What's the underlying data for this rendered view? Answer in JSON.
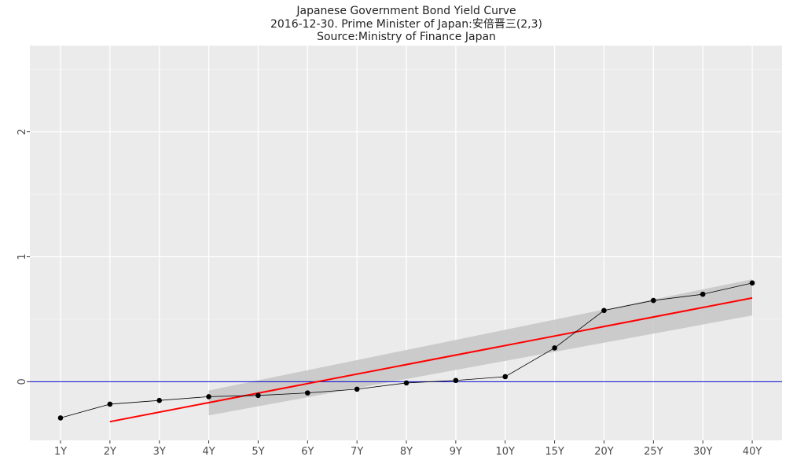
{
  "chart_data": {
    "type": "line",
    "title_lines": [
      "Japanese Government Bond Yield Curve",
      "2016-12-30. Prime Minister of Japan:安倍晋三(2,3)",
      "Source:Ministry of Finance Japan"
    ],
    "categories": [
      "1Y",
      "2Y",
      "3Y",
      "4Y",
      "5Y",
      "6Y",
      "7Y",
      "8Y",
      "9Y",
      "10Y",
      "15Y",
      "20Y",
      "25Y",
      "30Y",
      "40Y"
    ],
    "series": [
      {
        "values": [
          -0.29,
          -0.18,
          -0.15,
          -0.12,
          -0.11,
          -0.09,
          -0.06,
          -0.01,
          0.01,
          0.04,
          0.27,
          0.57,
          0.65,
          0.7,
          0.79
        ]
      }
    ],
    "trend": {
      "from_category": "2Y",
      "to_category": "40Y",
      "start": -0.32,
      "end": 0.67
    },
    "confidence_band": {
      "from_category": "4Y",
      "to_category": "40Y",
      "upper_start": -0.07,
      "upper_end": 0.82,
      "lower_start": -0.27,
      "lower_end": 0.53
    },
    "reference_line_y": 0,
    "y_ticks": [
      0,
      1,
      2
    ],
    "ylim": [
      -0.47,
      2.69
    ],
    "grid": true,
    "colors": {
      "panel": "#ebebeb",
      "grid_major": "#ffffff",
      "series_line": "#000000",
      "trend_line": "#ff0000",
      "band": "#c8c8c8",
      "reference_line": "#0000cc",
      "text": "#222222",
      "tick_text": "#4d4d4d"
    }
  }
}
